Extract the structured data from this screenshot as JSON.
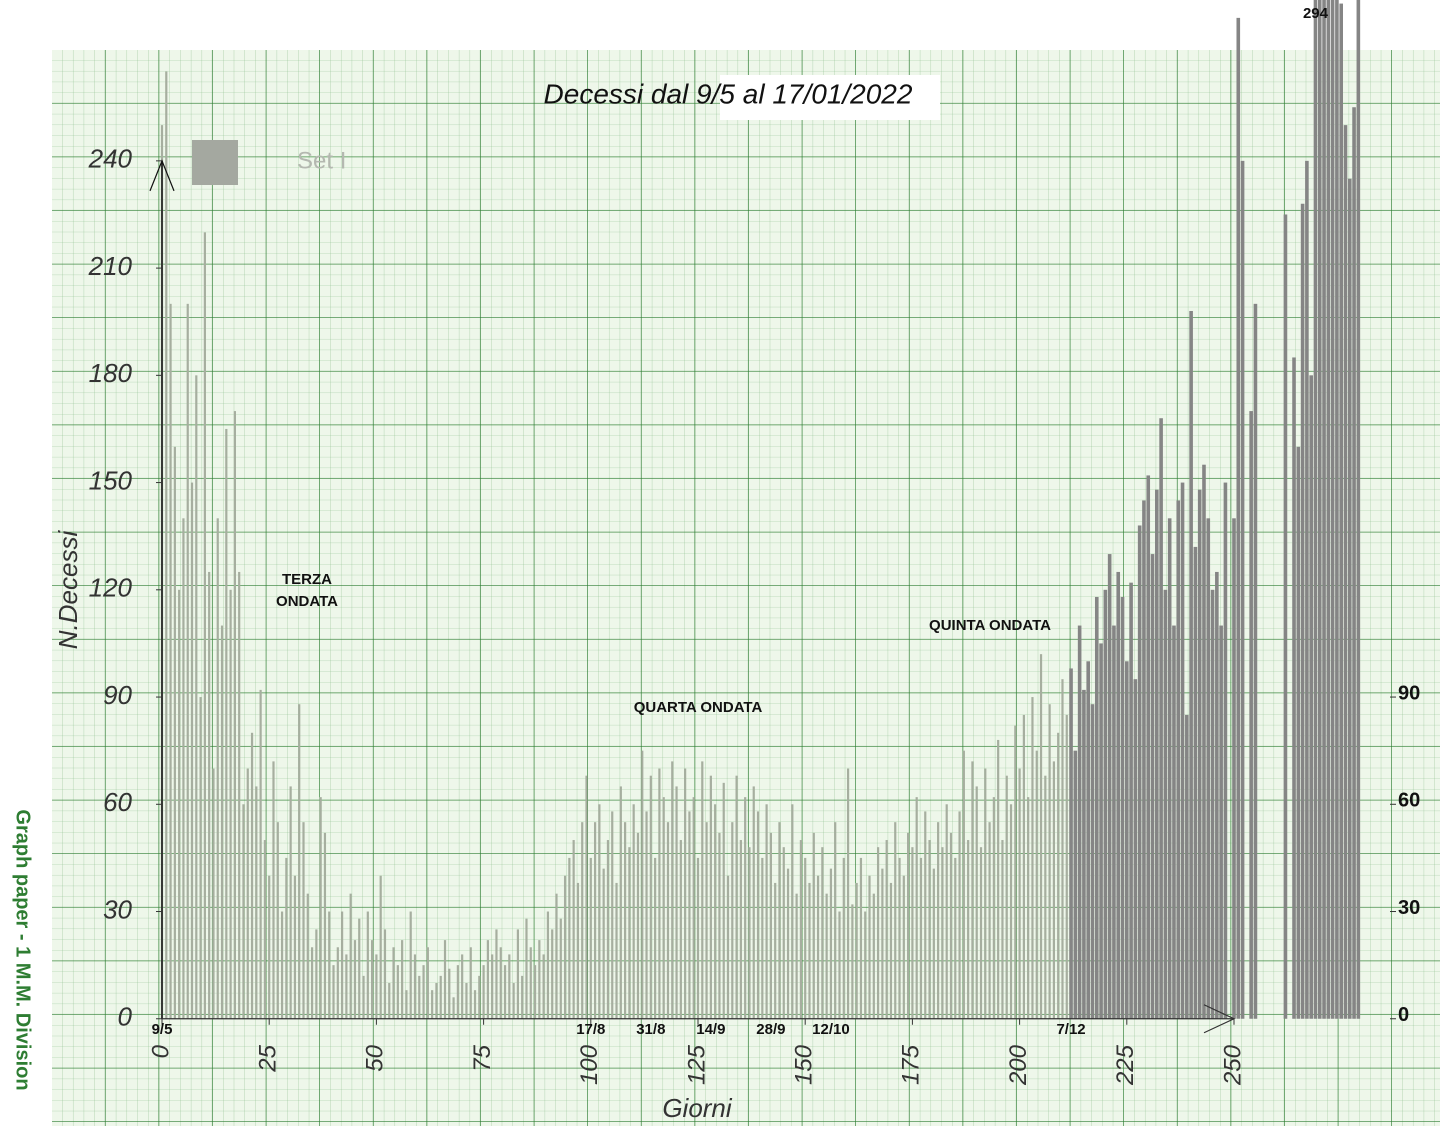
{
  "chart_data": {
    "type": "bar",
    "title": "Decessi dal 9/5 al 17/01/2022",
    "x_label": "Giorni",
    "y_label": "N.Decessi",
    "side_note": "Graph paper - 1 M.M. Division",
    "annotations": [
      [
        "TERZA",
        "ONDATA"
      ],
      [
        "QUARTA ONDATA"
      ],
      [
        "QUINTA ONDATA"
      ]
    ],
    "date_labels": [
      {
        "x": 0,
        "text": "9/5"
      },
      {
        "x": 100,
        "text": "17/8"
      },
      {
        "x": 114,
        "text": "31/8"
      },
      {
        "x": 128,
        "text": "14/9"
      },
      {
        "x": 142,
        "text": "28/9"
      },
      {
        "x": 156,
        "text": "12/10"
      },
      {
        "x": 212,
        "text": "7/12"
      }
    ],
    "peak_label": 294,
    "xlim": [
      -25.6,
      298
    ],
    "ylim": [
      -30,
      285
    ],
    "xticks": [
      0,
      25,
      50,
      75,
      100,
      125,
      150,
      175,
      200,
      225,
      250
    ],
    "yticks": [
      0,
      30,
      60,
      90,
      120,
      150,
      180,
      210,
      240
    ],
    "y2lim": [
      -30,
      285
    ],
    "y2ticks": [
      0,
      30,
      60,
      90
    ],
    "legend": "top-left",
    "emphasis": {
      "from_x": 212,
      "color": "#858585"
    },
    "x": [
      0,
      1,
      2,
      3,
      4,
      5,
      6,
      7,
      8,
      9,
      10,
      11,
      12,
      13,
      14,
      15,
      16,
      17,
      18,
      19,
      20,
      21,
      22,
      23,
      24,
      25,
      26,
      27,
      28,
      29,
      30,
      31,
      32,
      33,
      34,
      35,
      36,
      37,
      38,
      39,
      40,
      41,
      42,
      43,
      44,
      45,
      46,
      47,
      48,
      49,
      50,
      51,
      52,
      53,
      54,
      55,
      56,
      57,
      58,
      59,
      60,
      61,
      62,
      63,
      64,
      65,
      66,
      67,
      68,
      69,
      70,
      71,
      72,
      73,
      74,
      75,
      76,
      77,
      78,
      79,
      80,
      81,
      82,
      83,
      84,
      85,
      86,
      87,
      88,
      89,
      90,
      91,
      92,
      93,
      94,
      95,
      96,
      97,
      98,
      99,
      100,
      101,
      102,
      103,
      104,
      105,
      106,
      107,
      108,
      109,
      110,
      111,
      112,
      113,
      114,
      115,
      116,
      117,
      118,
      119,
      120,
      121,
      122,
      123,
      124,
      125,
      126,
      127,
      128,
      129,
      130,
      131,
      132,
      133,
      134,
      135,
      136,
      137,
      138,
      139,
      140,
      141,
      142,
      143,
      144,
      145,
      146,
      147,
      148,
      149,
      150,
      151,
      152,
      153,
      154,
      155,
      156,
      157,
      158,
      159,
      160,
      161,
      162,
      163,
      164,
      165,
      166,
      167,
      168,
      169,
      170,
      171,
      172,
      173,
      174,
      175,
      176,
      177,
      178,
      179,
      180,
      181,
      182,
      183,
      184,
      185,
      186,
      187,
      188,
      189,
      190,
      191,
      192,
      193,
      194,
      195,
      196,
      197,
      198,
      199,
      200,
      201,
      202,
      203,
      204,
      205,
      206,
      207,
      208,
      209,
      210,
      211,
      212,
      213,
      214,
      215,
      216,
      217,
      218,
      219,
      220,
      221,
      222,
      223,
      224,
      225,
      226,
      227,
      228,
      229,
      230,
      231,
      232,
      233,
      234,
      235,
      236,
      237,
      238,
      239,
      240,
      241,
      242,
      243,
      244,
      245,
      246,
      247,
      248,
      249,
      250,
      251,
      252,
      253,
      254,
      255,
      256,
      257,
      258,
      259,
      260,
      261,
      262,
      263,
      264,
      265,
      266,
      267,
      268,
      269,
      270,
      271,
      272,
      273,
      274,
      275,
      276,
      277,
      278,
      279
    ],
    "series": [
      {
        "name": "Set I",
        "color": "#a6ae9f",
        "values": [
          250,
          265,
          200,
          160,
          120,
          140,
          200,
          150,
          180,
          90,
          220,
          125,
          70,
          140,
          110,
          165,
          120,
          170,
          125,
          60,
          70,
          80,
          65,
          92,
          50,
          40,
          72,
          55,
          30,
          45,
          65,
          40,
          88,
          55,
          35,
          20,
          25,
          62,
          52,
          30,
          15,
          20,
          30,
          18,
          35,
          22,
          28,
          12,
          30,
          22,
          18,
          40,
          25,
          10,
          20,
          15,
          22,
          8,
          30,
          18,
          12,
          15,
          20,
          8,
          10,
          12,
          22,
          14,
          6,
          15,
          18,
          10,
          20,
          8,
          12,
          15,
          22,
          18,
          25,
          20,
          15,
          18,
          10,
          25,
          12,
          28,
          20,
          15,
          22,
          18,
          30,
          25,
          35,
          28,
          40,
          45,
          50,
          38,
          55,
          68,
          45,
          55,
          60,
          42,
          50,
          58,
          38,
          65,
          55,
          48,
          60,
          52,
          75,
          58,
          68,
          45,
          70,
          62,
          55,
          72,
          65,
          50,
          70,
          58,
          62,
          45,
          72,
          55,
          68,
          60,
          52,
          66,
          40,
          55,
          68,
          50,
          62,
          48,
          65,
          58,
          45,
          60,
          52,
          38,
          55,
          48,
          42,
          60,
          35,
          50,
          45,
          38,
          52,
          40,
          48,
          35,
          42,
          55,
          30,
          45,
          70,
          32,
          38,
          45,
          30,
          40,
          35,
          48,
          42,
          50,
          38,
          55,
          45,
          40,
          52,
          48,
          62,
          45,
          58,
          50,
          42,
          55,
          48,
          60,
          52,
          45,
          58,
          75,
          50,
          72,
          65,
          48,
          70,
          55,
          62,
          78,
          50,
          68,
          60,
          82,
          70,
          85,
          62,
          90,
          75,
          102,
          68,
          88,
          72,
          80,
          95,
          85,
          98,
          75,
          110,
          92,
          100,
          88,
          118,
          105,
          120,
          130,
          110,
          125,
          118,
          100,
          122,
          95,
          138,
          145,
          152,
          130,
          148,
          168,
          120,
          140,
          110,
          145,
          150,
          85,
          198,
          132,
          148,
          155,
          140,
          120,
          125,
          110,
          150,
          null,
          140,
          280,
          240,
          null,
          170,
          200,
          null,
          null,
          null,
          null,
          null,
          null,
          225,
          null,
          185,
          160,
          228,
          240,
          180,
          294,
          288,
          285,
          290,
          286,
          288,
          284,
          250,
          235,
          255,
          287
        ]
      }
    ]
  }
}
